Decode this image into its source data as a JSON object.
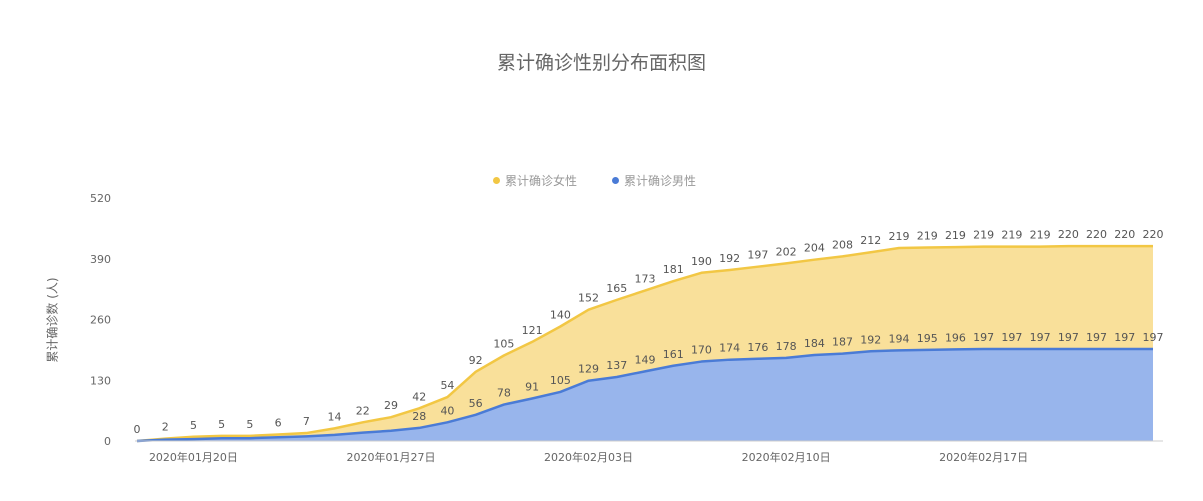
{
  "colors": {
    "female_line": "#F2C744",
    "female_fill": "#F9E09A",
    "male_line": "#4A7BD6",
    "male_fill": "#98B5EC",
    "axis_text": "#666666",
    "label_text": "#555555",
    "legend_text": "#999999"
  },
  "chart_data": {
    "type": "area",
    "stacked": true,
    "title": "累计确诊性别分布面积图",
    "ylabel": "累计确诊数 (人)",
    "xlabel": "",
    "ylim": [
      0,
      520
    ],
    "yticks": [
      0,
      130,
      260,
      390,
      520
    ],
    "grid": false,
    "legend_position": "top-center",
    "x": [
      "2020年01月18日",
      "2020年01月19日",
      "2020年01月20日",
      "2020年01月21日",
      "2020年01月22日",
      "2020年01月23日",
      "2020年01月24日",
      "2020年01月25日",
      "2020年01月26日",
      "2020年01月27日",
      "2020年01月28日",
      "2020年01月29日",
      "2020年01月30日",
      "2020年01月31日",
      "2020年02月01日",
      "2020年02月02日",
      "2020年02月03日",
      "2020年02月04日",
      "2020年02月05日",
      "2020年02月06日",
      "2020年02月07日",
      "2020年02月08日",
      "2020年02月09日",
      "2020年02月10日",
      "2020年02月11日",
      "2020年02月12日",
      "2020年02月13日",
      "2020年02月14日",
      "2020年02月15日",
      "2020年02月16日",
      "2020年02月17日",
      "2020年02月18日",
      "2020年02月19日",
      "2020年02月20日",
      "2020年02月21日",
      "2020年02月22日",
      "2020年02月23日"
    ],
    "x_tick_labels": [
      "2020年01月20日",
      "2020年01月27日",
      "2020年02月03日",
      "2020年02月10日",
      "2020年02月17日"
    ],
    "series": [
      {
        "name": "累计确诊女性",
        "values": [
          0,
          2,
          5,
          5,
          5,
          6,
          7,
          14,
          22,
          29,
          42,
          54,
          92,
          105,
          121,
          140,
          152,
          165,
          173,
          181,
          190,
          192,
          197,
          202,
          204,
          208,
          212,
          219,
          219,
          219,
          219,
          219,
          219,
          220,
          220,
          220,
          220
        ]
      },
      {
        "name": "累计确诊男性",
        "values": [
          0,
          3,
          4,
          6,
          6,
          8,
          10,
          13,
          18,
          22,
          28,
          40,
          56,
          78,
          91,
          105,
          129,
          137,
          149,
          161,
          170,
          174,
          176,
          178,
          184,
          187,
          192,
          194,
          195,
          196,
          197,
          197,
          197,
          197,
          197,
          197,
          197
        ]
      }
    ]
  }
}
